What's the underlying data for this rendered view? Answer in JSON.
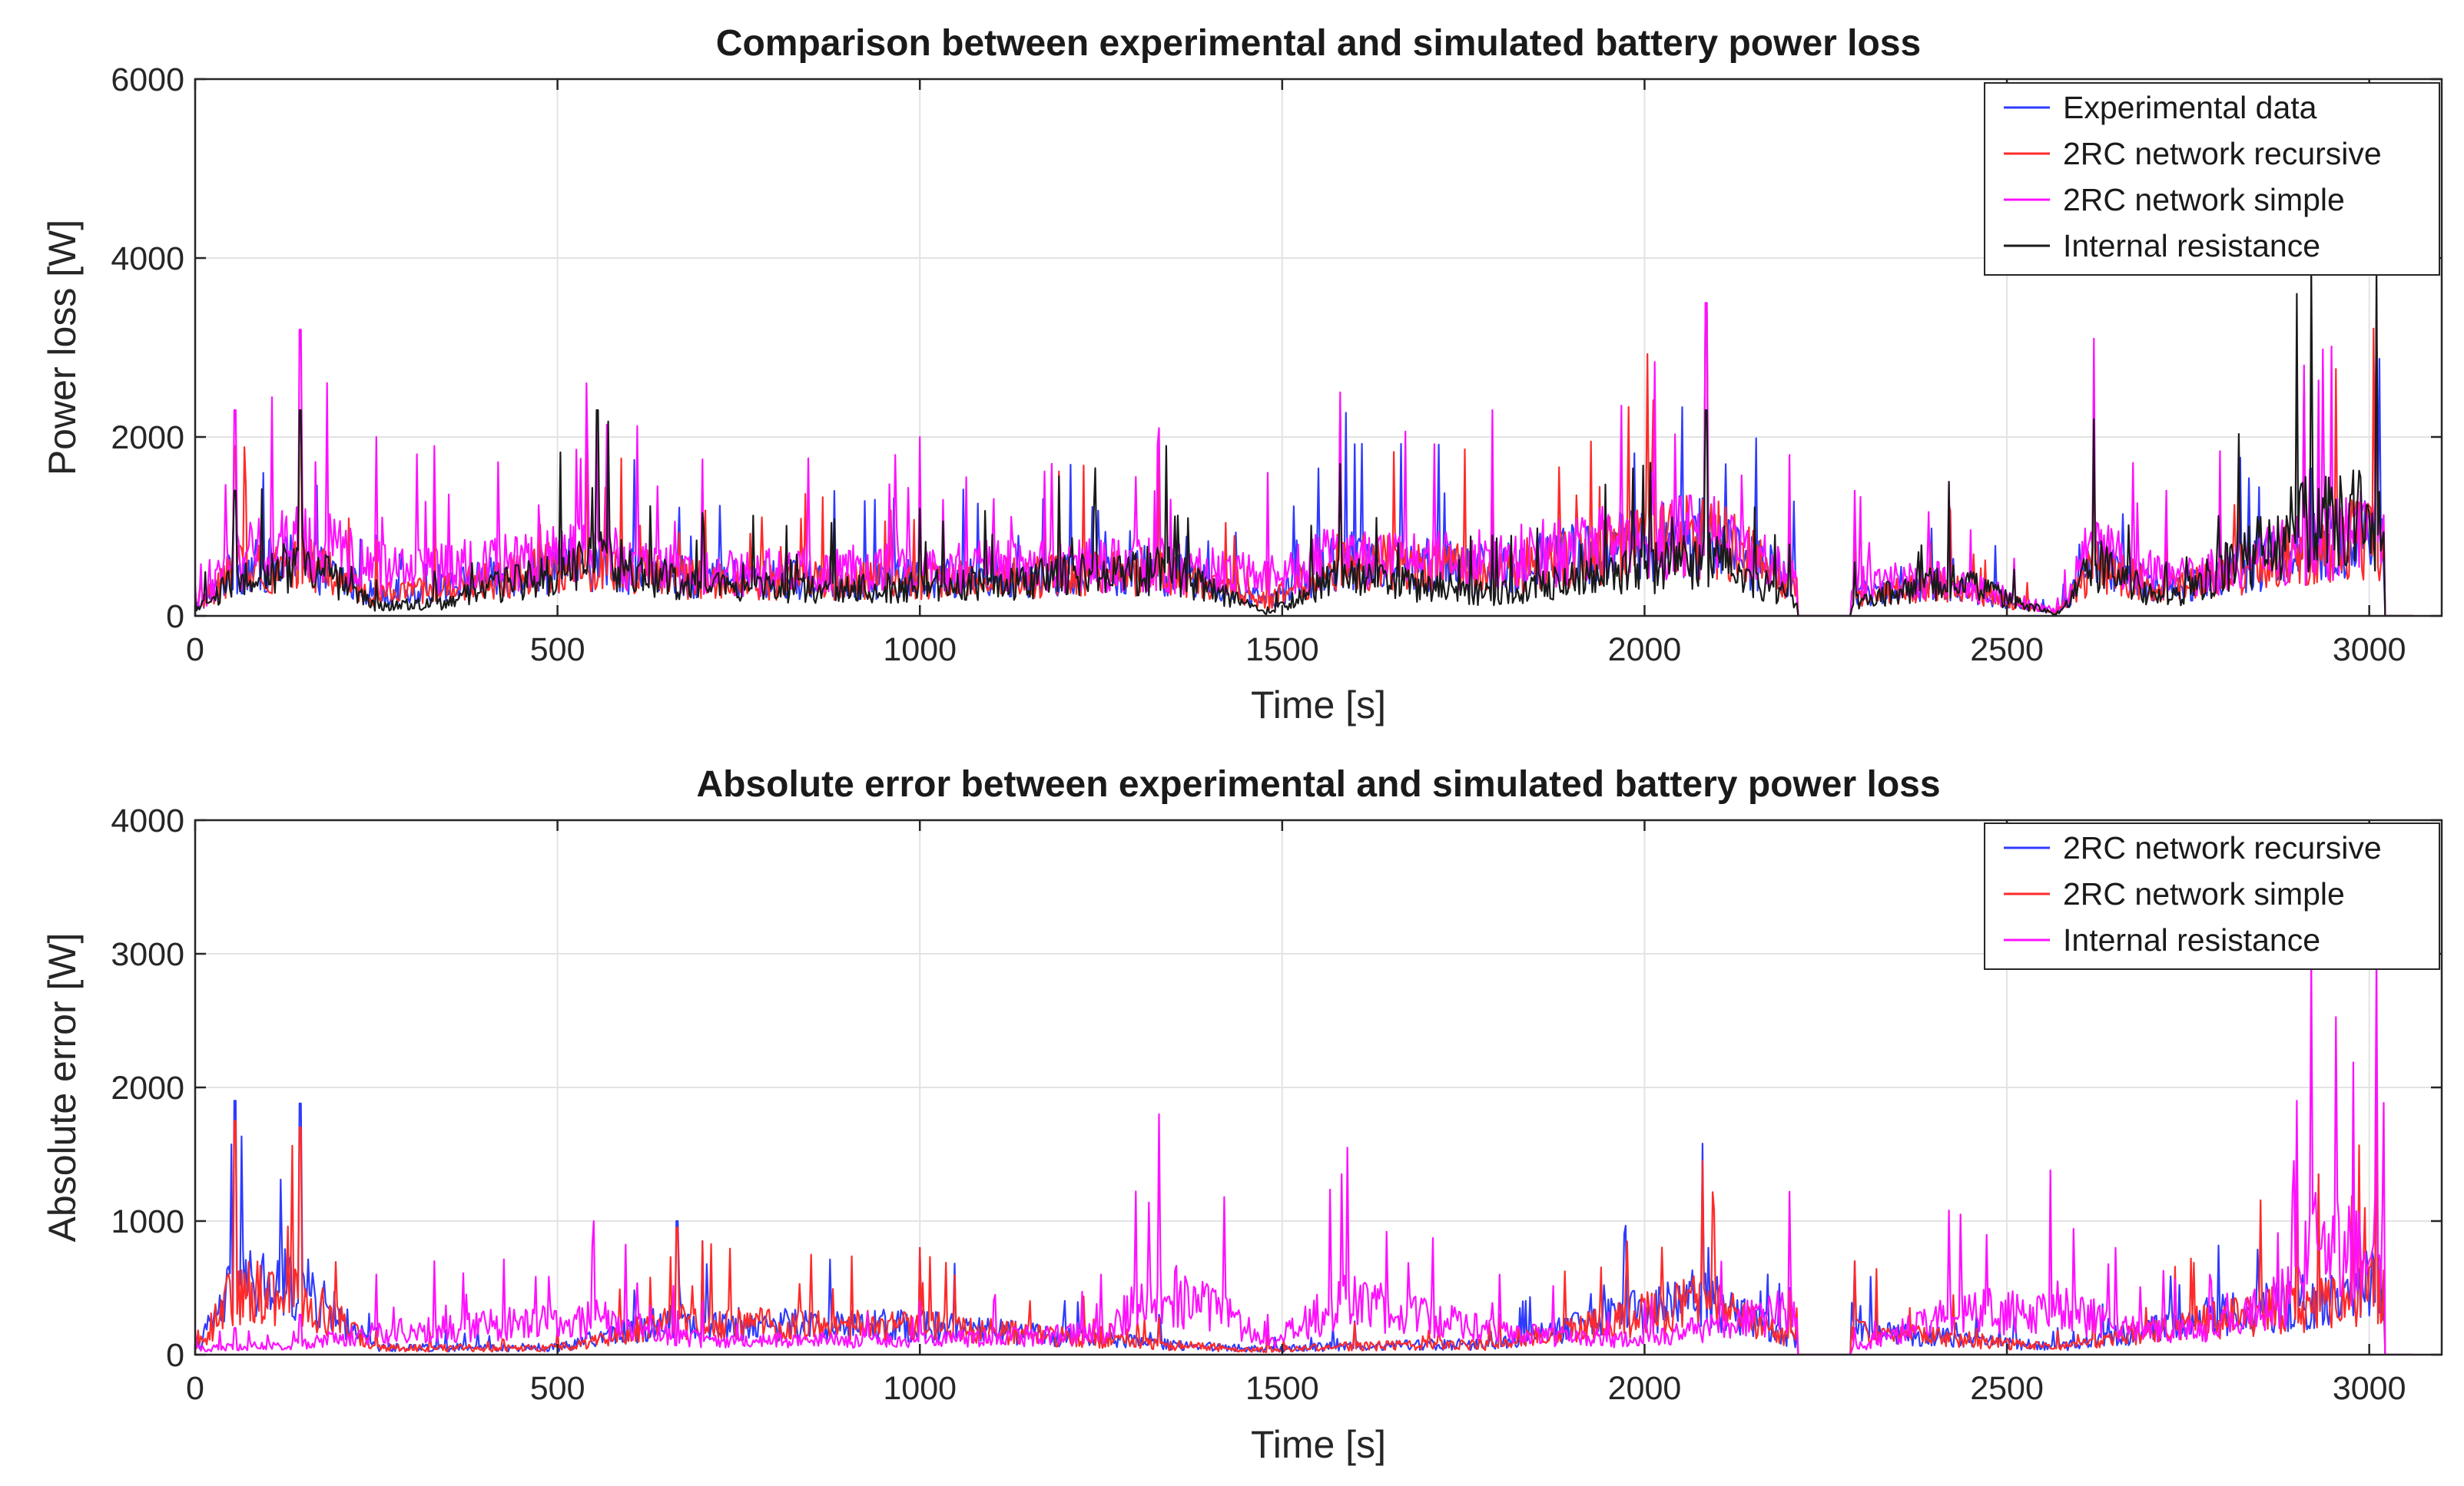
{
  "chart_data": [
    {
      "type": "line",
      "title": "Comparison between experimental and simulated battery power loss",
      "xlabel": "Time [s]",
      "ylabel": "Power loss [W]",
      "xlim": [
        0,
        3100
      ],
      "ylim": [
        0,
        6000
      ],
      "xticks": [
        0,
        500,
        1000,
        1500,
        2000,
        2500,
        3000
      ],
      "yticks": [
        0,
        2000,
        4000,
        6000
      ],
      "xtick_labels": [
        "0",
        "500",
        "1000",
        "1500",
        "2000",
        "2500",
        "3000"
      ],
      "ytick_labels": [
        "0",
        "2000",
        "4000",
        "6000"
      ],
      "grid": true,
      "legend_position": "top-right",
      "series": [
        {
          "name": "Experimental data",
          "color": "#2f3bff",
          "x": [
            0,
            55,
            145,
            250,
            330,
            540,
            700,
            1000,
            1330,
            1480,
            1580,
            1790,
            2085,
            2200,
            2270,
            2290,
            2420,
            2570,
            2620,
            2720,
            2910,
            3010,
            3060
          ],
          "values": [
            300,
            1900,
            2300,
            900,
            1100,
            2300,
            1500,
            1500,
            1900,
            600,
            2400,
            1900,
            3400,
            1500,
            0,
            900,
            1300,
            100,
            2100,
            1100,
            2700,
            3400,
            0
          ]
        },
        {
          "name": "2RC network recursive",
          "color": "#ff2a2a",
          "x": [
            0,
            55,
            145,
            250,
            330,
            540,
            700,
            1000,
            1330,
            1480,
            1580,
            1790,
            2085,
            2200,
            2270,
            2290,
            2420,
            2570,
            2620,
            2720,
            2910,
            3010,
            3060
          ],
          "values": [
            280,
            1900,
            2250,
            850,
            1050,
            2250,
            1450,
            1450,
            1850,
            580,
            2350,
            1850,
            3350,
            1450,
            0,
            850,
            1250,
            100,
            2050,
            1050,
            2650,
            3350,
            0
          ]
        },
        {
          "name": "2RC network simple",
          "color": "#ff10ff",
          "x": [
            0,
            55,
            145,
            250,
            330,
            540,
            700,
            1000,
            1330,
            1480,
            1580,
            1790,
            2085,
            2200,
            2270,
            2290,
            2420,
            2570,
            2620,
            2720,
            2910,
            3010,
            3060
          ],
          "values": [
            350,
            2300,
            3200,
            2000,
            1900,
            2600,
            1750,
            2000,
            2100,
            1600,
            2500,
            2300,
            3500,
            1800,
            0,
            1400,
            1500,
            200,
            3100,
            1400,
            2800,
            3500,
            0
          ]
        },
        {
          "name": "Internal resistance",
          "color": "#1a1a1a",
          "x": [
            0,
            55,
            145,
            250,
            330,
            555,
            700,
            1000,
            1340,
            1480,
            1580,
            1790,
            2085,
            2200,
            2270,
            2290,
            2420,
            2570,
            2620,
            2720,
            2900,
            2920,
            3010,
            3060
          ],
          "values": [
            200,
            1400,
            2300,
            400,
            500,
            2300,
            1150,
            1200,
            1900,
            100,
            1700,
            900,
            2300,
            800,
            0,
            600,
            1500,
            50,
            2200,
            600,
            3600,
            3900,
            3900,
            0
          ]
        }
      ]
    },
    {
      "type": "line",
      "title": "Absolute error between experimental and simulated battery power loss",
      "xlabel": "Time [s]",
      "ylabel": "Absolute error [W]",
      "xlim": [
        0,
        3100
      ],
      "ylim": [
        0,
        4000
      ],
      "xticks": [
        0,
        500,
        1000,
        1500,
        2000,
        2500,
        3000
      ],
      "yticks": [
        0,
        1000,
        2000,
        3000,
        4000
      ],
      "xtick_labels": [
        "0",
        "500",
        "1000",
        "1500",
        "2000",
        "2500",
        "3000"
      ],
      "ytick_labels": [
        "0",
        "1000",
        "2000",
        "3000",
        "4000"
      ],
      "grid": true,
      "legend_position": "top-right",
      "series": [
        {
          "name": "2RC network recursive",
          "color": "#2f3bff",
          "x": [
            0,
            55,
            145,
            250,
            500,
            665,
            700,
            1000,
            1330,
            1480,
            1600,
            1800,
            2080,
            2200,
            2270,
            2290,
            2570,
            2620,
            2900,
            2930,
            3010,
            3060
          ],
          "values": [
            150,
            1900,
            1880,
            200,
            200,
            1000,
            850,
            800,
            300,
            150,
            250,
            300,
            1580,
            500,
            0,
            700,
            200,
            400,
            1500,
            1350,
            2000,
            0
          ]
        },
        {
          "name": "2RC network simple",
          "color": "#ff2a2a",
          "x": [
            0,
            55,
            145,
            250,
            500,
            665,
            700,
            1000,
            1330,
            1480,
            1600,
            1800,
            2080,
            2200,
            2270,
            2290,
            2570,
            2620,
            2900,
            2930,
            3010,
            3060
          ],
          "values": [
            140,
            1750,
            1700,
            180,
            180,
            950,
            850,
            800,
            280,
            140,
            240,
            280,
            1450,
            480,
            0,
            700,
            180,
            380,
            1350,
            1350,
            1950,
            0
          ]
        },
        {
          "name": "Internal resistance",
          "color": "#ff10ff",
          "x": [
            0,
            55,
            145,
            250,
            330,
            550,
            700,
            1000,
            1250,
            1330,
            1420,
            1480,
            1590,
            1800,
            2000,
            2200,
            2270,
            2290,
            2420,
            2560,
            2650,
            2780,
            2900,
            2920,
            3010,
            3060
          ],
          "values": [
            180,
            200,
            300,
            600,
            700,
            1000,
            400,
            400,
            600,
            1800,
            1180,
            300,
            1550,
            600,
            400,
            1220,
            0,
            200,
            1080,
            1380,
            800,
            600,
            1900,
            3000,
            3000,
            0
          ]
        }
      ]
    }
  ]
}
